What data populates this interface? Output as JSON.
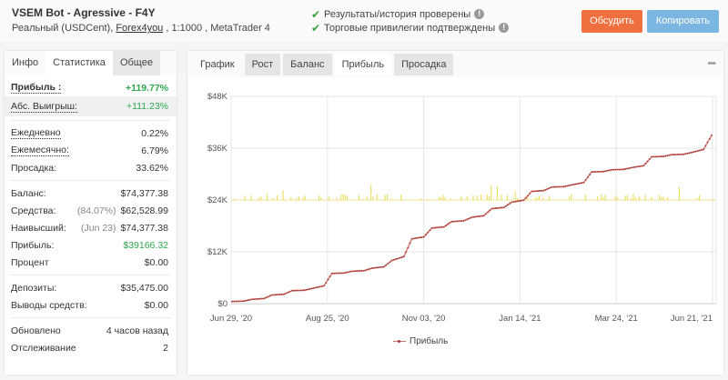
{
  "header": {
    "title": "VSEM Bot - Agressive - F4Y",
    "account_type": "Реальный (USDCent), ",
    "broker_link": "Forex4you",
    "leverage_platform": " , 1:1000 , MetaTrader 4",
    "verifications": [
      {
        "icon": "check-icon",
        "label": "Результаты/история проверены"
      },
      {
        "icon": "check-icon",
        "label": "Торговые привилегии подтверждены"
      }
    ],
    "discuss_button": "Обсудить",
    "copy_button": "Копировать",
    "colors": {
      "discuss": "#ef6f3e",
      "copy": "#7ab6e1"
    }
  },
  "left_panel": {
    "tabs": [
      {
        "label": "Инфо",
        "state": "inactive"
      },
      {
        "label": "Статистика",
        "state": "active"
      },
      {
        "label": "Общее",
        "state": "shaded"
      }
    ],
    "gain": {
      "label": "Прибыль :",
      "value": "+119.77%"
    },
    "abs_gain": {
      "label": "Абс. Выигрыш:",
      "value": "+111.23%"
    },
    "daily": {
      "label": "Ежедневно",
      "value": "0.22%"
    },
    "monthly": {
      "label": "Ежемесячно:",
      "value": "6.79%"
    },
    "drawdown": {
      "label": "Просадка:",
      "value": "33.62%"
    },
    "balance": {
      "label": "Баланс:",
      "value": "$74,377.38"
    },
    "equity": {
      "label": "Средства:",
      "note": "(84.07%)",
      "value": "$62,528.99"
    },
    "highest": {
      "label": "Наивысший:",
      "note": "(Jun 23)",
      "value": "$74,377.38"
    },
    "profit": {
      "label": "Прибыль:",
      "value": "$39166.32"
    },
    "interest": {
      "label": "Процент",
      "value": "$0.00"
    },
    "deposits": {
      "label": "Депозиты:",
      "value": "$35,475.00"
    },
    "withdrawals": {
      "label": "Выводы средств:",
      "value": "$0.00"
    },
    "updated": {
      "label": "Обновлено",
      "value": "4 часов назад"
    },
    "tracking": {
      "label": "Отслеживание",
      "value": "2"
    }
  },
  "right_panel": {
    "tabs": [
      {
        "label": "График",
        "state": "inactive"
      },
      {
        "label": "Рост",
        "state": "shaded"
      },
      {
        "label": "Баланс",
        "state": "shaded"
      },
      {
        "label": "Прибыль",
        "state": "active"
      },
      {
        "label": "Просадка",
        "state": "shaded"
      }
    ],
    "more_menu": "•••",
    "legend_label": "Прибыль"
  },
  "chart_data": {
    "type": "line",
    "title": "",
    "xlabel": "",
    "ylabel": "",
    "series": [
      {
        "name": "Прибыль",
        "color": "#c0392b",
        "x": [
          "Jun 29, '20",
          "Jul 15, '20",
          "Aug 01, '20",
          "Aug 15, '20",
          "Aug 25, '20",
          "Sep 05, '20",
          "Sep 20, '20",
          "Oct 05, '20",
          "Oct 20, '20",
          "Nov 03, '20",
          "Nov 20, '20",
          "Dec 05, '20",
          "Dec 20, '20",
          "Jan 01, '21",
          "Jan 14, '21",
          "Feb 01, '21",
          "Feb 20, '21",
          "Mar 05, '21",
          "Mar 24, '21",
          "Apr 10, '21",
          "Apr 25, '21",
          "May 10, '21",
          "May 25, '21",
          "Jun 10, '21",
          "Jun 21, '21"
        ],
        "values": [
          500,
          1000,
          2000,
          3000,
          3500,
          7000,
          7500,
          8200,
          10000,
          15000,
          17500,
          19000,
          20000,
          22000,
          23500,
          26000,
          27000,
          27500,
          30500,
          31000,
          31500,
          34000,
          34500,
          35000,
          39000
        ]
      }
    ],
    "background_bars": {
      "name": "daily activity",
      "color": "#e8d84a",
      "baseline": 24000,
      "note": "thin yellow bars near $24K baseline"
    },
    "y_ticks": [
      "$0",
      "$12K",
      "$24K",
      "$36K",
      "$48K"
    ],
    "y_values": [
      0,
      12000,
      24000,
      36000,
      48000
    ],
    "x_ticks": [
      "Jun 29, '20",
      "Aug 25, '20",
      "Nov 03, '20",
      "Jan 14, '21",
      "Mar 24, '21",
      "Jun 21, '21"
    ],
    "ylim": [
      0,
      48000
    ],
    "grid": true,
    "legend_position": "bottom-center"
  }
}
